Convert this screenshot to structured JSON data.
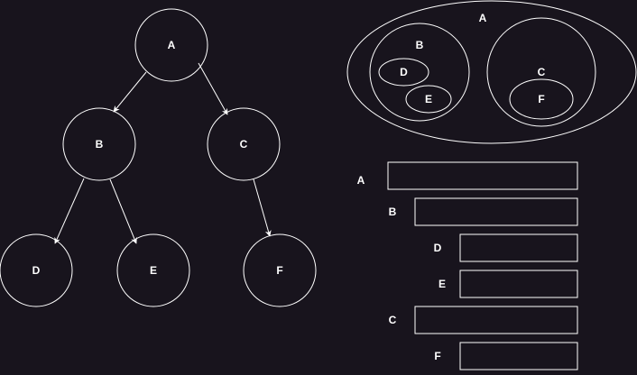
{
  "colors": {
    "background": "#18141d",
    "stroke": "#ffffff",
    "text": "#ffffff"
  },
  "tree": {
    "nodes": {
      "a": "A",
      "b": "B",
      "c": "C",
      "d": "D",
      "e": "E",
      "f": "F"
    },
    "edges": [
      [
        "A",
        "B"
      ],
      [
        "A",
        "C"
      ],
      [
        "B",
        "D"
      ],
      [
        "B",
        "E"
      ],
      [
        "C",
        "F"
      ]
    ]
  },
  "nested_sets": {
    "a": "A",
    "b": "B",
    "c": "C",
    "d": "D",
    "e": "E",
    "f": "F"
  },
  "indented_list": {
    "a": "A",
    "b": "B",
    "d": "D",
    "e": "E",
    "c": "C",
    "f": "F"
  }
}
